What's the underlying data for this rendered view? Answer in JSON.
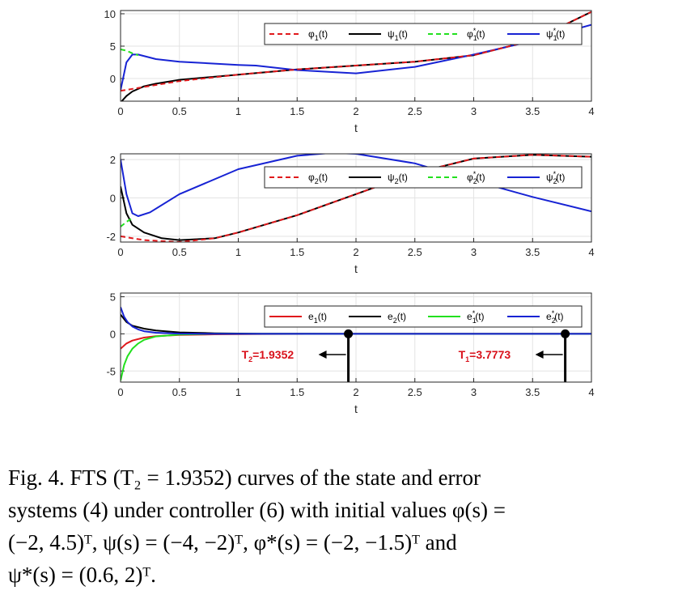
{
  "chart_data": [
    {
      "type": "line",
      "xlabel": "t",
      "xlim": [
        0,
        4
      ],
      "ylim": [
        -3.5,
        10.5
      ],
      "xticks": [
        "0",
        "0.5",
        "1",
        "1.5",
        "2",
        "2.5",
        "3",
        "3.5",
        "4"
      ],
      "yticks": [
        "10",
        "5",
        "0"
      ],
      "yticks_values": [
        10,
        5,
        0
      ],
      "grid": true,
      "legend_position": "top-right",
      "series": [
        {
          "name": "φ1(t)",
          "label_main": "φ",
          "label_sub": "1",
          "label_sup": "",
          "color": "#e0191c",
          "dash": "dashed",
          "x": [
            0,
            0.1,
            0.3,
            0.5,
            1,
            1.5,
            2,
            2.5,
            3,
            3.5,
            4
          ],
          "y": [
            -1.9,
            -1.6,
            -1.0,
            -0.4,
            0.6,
            1.4,
            2.0,
            2.6,
            3.6,
            5.9,
            10.3
          ]
        },
        {
          "name": "ψ1(t)",
          "label_main": "ψ",
          "label_sub": "1",
          "label_sup": "",
          "color": "#000000",
          "dash": "solid",
          "x": [
            0,
            0.05,
            0.1,
            0.2,
            0.3,
            0.5,
            1,
            1.5,
            2,
            2.5,
            3,
            3.5,
            4
          ],
          "y": [
            -3.7,
            -2.7,
            -2.0,
            -1.2,
            -0.8,
            -0.2,
            0.6,
            1.4,
            2.0,
            2.6,
            3.6,
            5.9,
            10.3
          ]
        },
        {
          "name": "φ1*(t)",
          "label_main": "φ",
          "label_sub": "1",
          "label_sup": "*",
          "color": "#22e01e",
          "dash": "dashed",
          "x": [
            0,
            0.05,
            0.1,
            0.15
          ],
          "y": [
            4.5,
            4.3,
            3.9,
            3.6
          ]
        },
        {
          "name": "ψ1*(t)",
          "label_main": "ψ",
          "label_sub": "1",
          "label_sup": "*",
          "color": "#1723d4",
          "dash": "solid",
          "x": [
            0,
            0.05,
            0.1,
            0.15,
            0.3,
            0.5,
            1,
            1.15,
            1.5,
            2,
            2.5,
            3,
            3.5,
            4
          ],
          "y": [
            -1.8,
            2.5,
            3.7,
            3.7,
            3.0,
            2.6,
            2.1,
            2.0,
            1.3,
            0.8,
            1.8,
            3.7,
            5.8,
            8.3
          ]
        }
      ]
    },
    {
      "type": "line",
      "xlabel": "t",
      "xlim": [
        0,
        4
      ],
      "ylim": [
        -2.3,
        2.3
      ],
      "xticks": [
        "0",
        "0.5",
        "1",
        "1.5",
        "2",
        "2.5",
        "3",
        "3.5",
        "4"
      ],
      "yticks": [
        "2",
        "0",
        "-2"
      ],
      "yticks_values": [
        2,
        0,
        -2
      ],
      "grid": true,
      "legend_position": "top-right",
      "series": [
        {
          "name": "φ2(t)",
          "label_main": "φ",
          "label_sub": "2",
          "label_sup": "",
          "color": "#e0191c",
          "dash": "dashed",
          "x": [
            0,
            0.2,
            0.5,
            0.8,
            1,
            1.5,
            2,
            2.5,
            3,
            3.5,
            4
          ],
          "y": [
            -2.0,
            -2.2,
            -2.3,
            -2.1,
            -1.8,
            -0.9,
            0.2,
            1.3,
            2.05,
            2.25,
            2.15
          ]
        },
        {
          "name": "ψ2(t)",
          "label_main": "ψ",
          "label_sub": "2",
          "label_sup": "",
          "color": "#000000",
          "dash": "solid",
          "x": [
            0,
            0.05,
            0.1,
            0.2,
            0.35,
            0.5,
            0.8,
            1,
            1.5,
            2,
            2.5,
            3,
            3.5,
            4
          ],
          "y": [
            0.6,
            -0.8,
            -1.4,
            -1.8,
            -2.1,
            -2.2,
            -2.1,
            -1.8,
            -0.9,
            0.2,
            1.3,
            2.05,
            2.25,
            2.15
          ]
        },
        {
          "name": "φ2*(t)",
          "label_main": "φ",
          "label_sub": "2",
          "label_sup": "*",
          "color": "#22e01e",
          "dash": "dashed",
          "x": [
            0,
            0.05,
            0.1
          ],
          "y": [
            -1.5,
            -1.25,
            -1.05
          ]
        },
        {
          "name": "ψ2*(t)",
          "label_main": "ψ",
          "label_sub": "2",
          "label_sup": "*",
          "color": "#1723d4",
          "dash": "solid",
          "x": [
            0,
            0.05,
            0.1,
            0.15,
            0.25,
            0.5,
            1,
            1.5,
            1.8,
            2,
            2.5,
            3,
            3.5,
            4
          ],
          "y": [
            2.0,
            0.2,
            -0.8,
            -0.95,
            -0.75,
            0.2,
            1.5,
            2.2,
            2.35,
            2.3,
            1.8,
            0.9,
            0.05,
            -0.7
          ]
        }
      ]
    },
    {
      "type": "line",
      "xlabel": "t",
      "xlim": [
        0,
        4
      ],
      "ylim": [
        -6.5,
        5.5
      ],
      "xticks": [
        "0",
        "0.5",
        "1",
        "1.5",
        "2",
        "2.5",
        "3",
        "3.5",
        "4"
      ],
      "yticks": [
        "5",
        "0",
        "-5"
      ],
      "yticks_values": [
        5,
        0,
        -5
      ],
      "grid": true,
      "legend_position": "top-right",
      "series": [
        {
          "name": "e1(t)",
          "label_main": "e",
          "label_sub": "1",
          "label_sup": "",
          "color": "#e0191c",
          "dash": "solid",
          "x": [
            0,
            0.05,
            0.1,
            0.2,
            0.3,
            0.5,
            0.8,
            1.2,
            2,
            4
          ],
          "y": [
            -2.0,
            -1.3,
            -0.9,
            -0.5,
            -0.3,
            -0.15,
            -0.06,
            -0.02,
            0,
            0
          ]
        },
        {
          "name": "e2(t)",
          "label_main": "e",
          "label_sub": "2",
          "label_sup": "",
          "color": "#000000",
          "dash": "solid",
          "x": [
            0,
            0.05,
            0.1,
            0.2,
            0.3,
            0.5,
            0.8,
            1.2,
            2,
            4
          ],
          "y": [
            2.6,
            1.6,
            1.1,
            0.7,
            0.45,
            0.2,
            0.08,
            0.02,
            0,
            0
          ]
        },
        {
          "name": "e1*(t)",
          "label_main": "e",
          "label_sub": "1",
          "label_sup": "*",
          "color": "#22e01e",
          "dash": "solid",
          "x": [
            0,
            0.03,
            0.06,
            0.1,
            0.15,
            0.2,
            0.3,
            0.5,
            0.8,
            4
          ],
          "y": [
            -6.3,
            -4.2,
            -3.0,
            -2.0,
            -1.3,
            -0.8,
            -0.35,
            -0.1,
            0,
            0
          ]
        },
        {
          "name": "e2*(t)",
          "label_main": "e",
          "label_sub": "2",
          "label_sup": "*",
          "color": "#1723d4",
          "dash": "solid",
          "x": [
            0,
            0.03,
            0.06,
            0.1,
            0.15,
            0.2,
            0.3,
            0.5,
            0.8,
            4
          ],
          "y": [
            3.6,
            2.3,
            1.6,
            1.0,
            0.6,
            0.35,
            0.15,
            0.03,
            0,
            0
          ]
        }
      ],
      "annotations": [
        {
          "t": 1.9352,
          "label_main": "T",
          "label_sub": "2",
          "label_rest": "=1.9352"
        },
        {
          "t": 3.7773,
          "label_main": "T",
          "label_sub": "1",
          "label_rest": "=3.7773"
        }
      ]
    }
  ],
  "caption": {
    "line1": "Fig. 4. FTS (T₂ = 1.9352) curves of the state and error",
    "line2": "systems (4) under controller (6) with initial values φ(s) =",
    "line3": "(−2, 4.5)ᵀ, ψ(s) = (−4, −2)ᵀ, φ*(s) = (−2, −1.5)ᵀ and",
    "line4": "ψ*(s) = (0.6, 2)ᵀ."
  }
}
